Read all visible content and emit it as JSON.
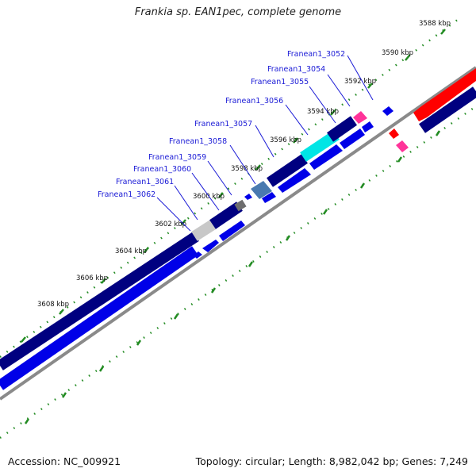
{
  "title": "Frankia sp. EAN1pec, complete genome",
  "footer": {
    "accession": "Accession: NC_009921",
    "topology": "Topology: circular; Length: 8,982,042 bp; Genes: 7,249"
  },
  "colors": {
    "strand_forward": "#0000e8",
    "strand_reverse": "#000080",
    "backbone": "#8a8a8a",
    "rna": "#ff0000",
    "highlight_pink": "#ff3399",
    "highlight_cyan": "#00e5e5",
    "pseudo_gray": "#c8c8c8",
    "steel": "#4a7ab0",
    "tick": "#228b22"
  },
  "ticks": [
    {
      "label": "3588 kbp"
    },
    {
      "label": "3590 kbp"
    },
    {
      "label": "3592 kbp"
    },
    {
      "label": "3594 kbp"
    },
    {
      "label": "3596 kbp"
    },
    {
      "label": "3598 kbp"
    },
    {
      "label": "3600 kbp"
    },
    {
      "label": "3602 kbp"
    },
    {
      "label": "3604 kbp"
    },
    {
      "label": "3606 kbp"
    },
    {
      "label": "3608 kbp"
    }
  ],
  "gene_labels": [
    {
      "label": "Franean1_3052"
    },
    {
      "label": "Franean1_3054"
    },
    {
      "label": "Franean1_3055"
    },
    {
      "label": "Franean1_3056"
    },
    {
      "label": "Franean1_3057"
    },
    {
      "label": "Franean1_3058"
    },
    {
      "label": "Franean1_3059"
    },
    {
      "label": "Franean1_3060"
    },
    {
      "label": "Franean1_3061"
    },
    {
      "label": "Franean1_3062"
    }
  ]
}
